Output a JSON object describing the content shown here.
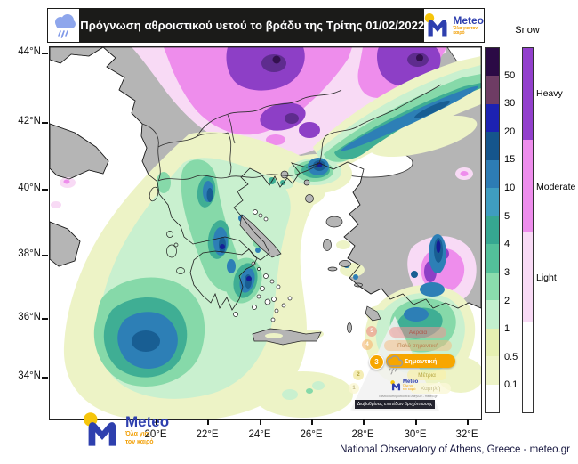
{
  "header": {
    "title": "Πρόγνωση αθροιστικού υετού το βράδυ της Τρίτης 01/02/2022",
    "logo": {
      "brand": "Meteo",
      "tagline_line1": "Όλα για",
      "tagline_line2": "τον καιρό"
    }
  },
  "footer": {
    "credit": "National Observatory of Athens, Greece - meteo.gr",
    "logo": {
      "brand": "Meteo",
      "tagline_line1": "Όλα για",
      "tagline_line2": "τον καιρό"
    }
  },
  "axes": {
    "lat_ticks": [
      "44°N",
      "42°N",
      "40°N",
      "38°N",
      "36°N",
      "34°N"
    ],
    "lon_ticks": [
      "20°E",
      "22°E",
      "24°E",
      "26°E",
      "28°E",
      "30°E",
      "32°E"
    ]
  },
  "legend": {
    "precip": {
      "boundary_labels": [
        "50",
        "30",
        "20",
        "15",
        "10",
        "5",
        "4",
        "3",
        "2",
        "1",
        "0.5",
        "0.1"
      ],
      "colors": [
        "#2b0a45",
        "#6e3c64",
        "#1c22b2",
        "#15558c",
        "#2d7cb4",
        "#3f9dc0",
        "#36a791",
        "#53c09a",
        "#8adcad",
        "#c3f0ce",
        "#e6f0b2",
        "#eef4c8",
        "#ffffff"
      ]
    },
    "snow": {
      "title": "Snow",
      "levels": [
        {
          "label": "Heavy",
          "color": "#9240cc"
        },
        {
          "label": "Moderate",
          "color": "#ee8dec"
        },
        {
          "label": "Light",
          "color": "#f8daf5"
        },
        {
          "label": "",
          "color": "#ffffff"
        }
      ]
    }
  },
  "pyramid": {
    "levels": [
      {
        "num": "5",
        "label": "Ακραία"
      },
      {
        "num": "4",
        "label": "Πολύ σημαντική"
      },
      {
        "num": "3",
        "label": "Σημαντική"
      },
      {
        "num": "2",
        "label": "Μέτρια"
      },
      {
        "num": "1",
        "label": "Χαμηλή"
      }
    ],
    "active_level": "3",
    "caption": "Διαβαθμίσεις επιπέδων βροχόπτωσης",
    "logo_brand": "Meteo",
    "logo_url_text": "Εθνικό Αστεροσκοπείο Αθηνών - meteo.gr"
  }
}
